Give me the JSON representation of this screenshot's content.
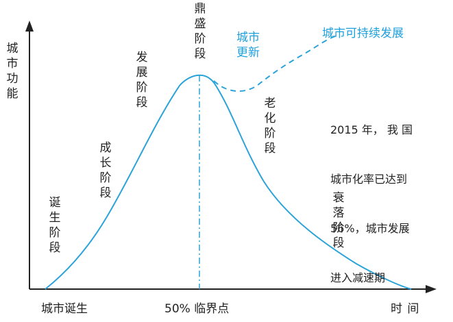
{
  "y_axis_label": "城市功能",
  "x_axis_label": "时 间",
  "x_start_label": "城市诞生",
  "x_mid_label": "50% 临界点",
  "stages": {
    "birth": "诞生阶段",
    "growth": "成长阶段",
    "development": "发展阶段",
    "peak": "鼎盛阶段",
    "aging": "老化阶段",
    "decline": "衰落阶段"
  },
  "renewal_label": "城市更新",
  "sustainable_label": "城市可持续发展",
  "note_lines": [
    "2015 年， 我 国",
    "城市化率已达到",
    "56%，城市发展",
    "进入减速期"
  ],
  "colors": {
    "curve": "#2aa3d8",
    "axis": "#222222",
    "blue_text": "#1ea0dc"
  }
}
